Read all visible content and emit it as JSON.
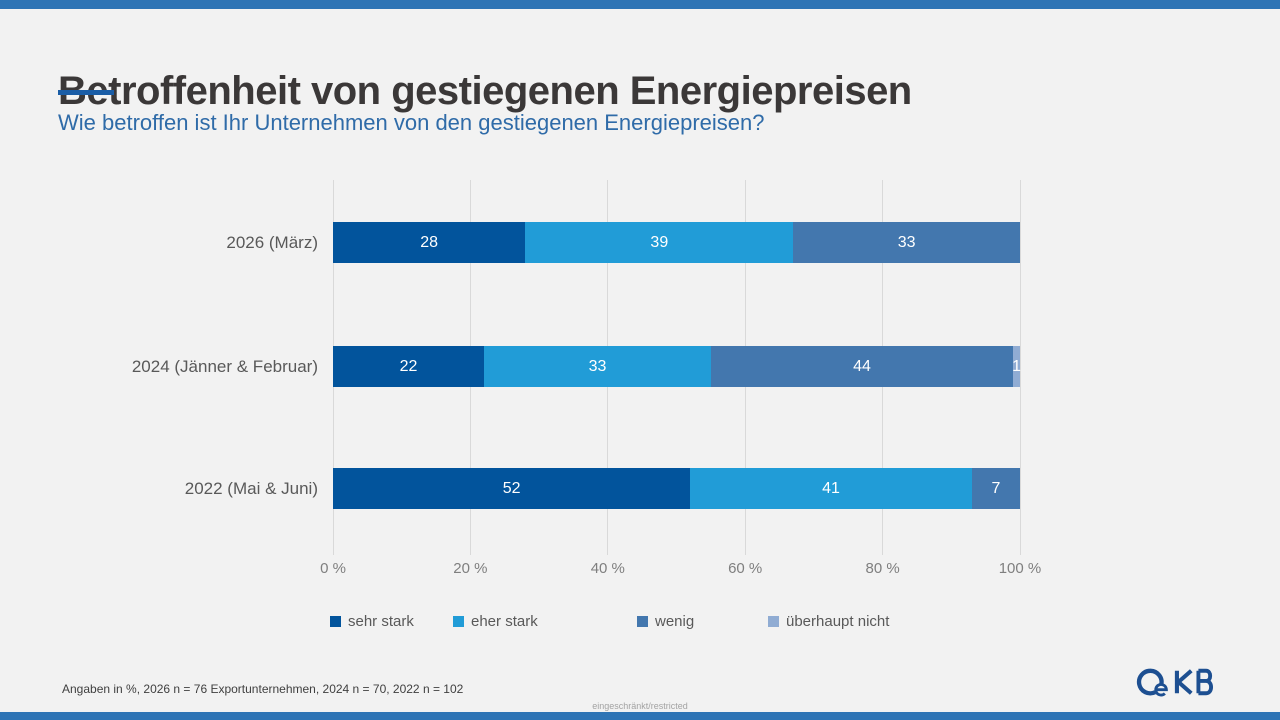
{
  "header": {
    "title": "Betroffenheit von gestiegenen Energiepreisen",
    "subtitle": "Wie betroffen ist Ihr Unternehmen von den gestiegenen Energiepreisen?"
  },
  "chart_data": {
    "type": "bar",
    "orientation": "horizontal",
    "stacked": true,
    "unit": "%",
    "categories": [
      "2026 (März)",
      "2024 (Jänner & Februar)",
      "2022 (Mai & Juni)"
    ],
    "series": [
      {
        "name": "sehr stark",
        "color": "#02549C",
        "values": [
          28,
          22,
          52
        ]
      },
      {
        "name": "eher stark",
        "color": "#219CD7",
        "values": [
          39,
          33,
          41
        ]
      },
      {
        "name": "wenig",
        "color": "#4377AE",
        "values": [
          33,
          44,
          7
        ]
      },
      {
        "name": "überhaupt nicht",
        "color": "#90ACD3",
        "values": [
          0,
          1,
          0
        ]
      }
    ],
    "xlim": [
      0,
      100
    ],
    "x_tick_labels": [
      "0 %",
      "20 %",
      "40 %",
      "60 %",
      "80 %",
      "100 %"
    ],
    "grid": "vertical",
    "legend_position": "bottom",
    "value_labels": "inside-white"
  },
  "footer": {
    "note": "Angaben in %, 2026 n = 76 Exportunternehmen, 2024 n = 70, 2022 n = 102",
    "restricted": "eingeschränkt/restricted"
  },
  "branding": {
    "logo_name": "OeKB",
    "logo_color": "#1D4F91",
    "accent_blue": "#2E74B5"
  }
}
